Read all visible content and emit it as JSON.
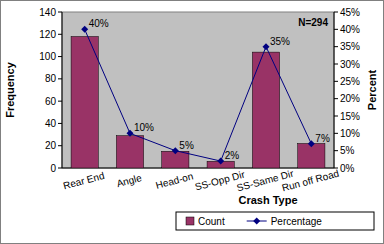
{
  "chart_data": {
    "type": "bar",
    "x_label": "Crash Type",
    "y_label": "Frequency",
    "y2_label": "Percent",
    "annotation": "N=294",
    "categories": [
      "Rear End",
      "Angle",
      "Head-on",
      "SS-Opp Dir",
      "SS-Same Dir",
      "Run off Road"
    ],
    "series": [
      {
        "name": "Count",
        "type": "bar",
        "color": "#993366",
        "values": [
          118,
          29,
          15,
          6,
          104,
          22
        ]
      },
      {
        "name": "Percentage",
        "type": "line",
        "axis": "y2",
        "color": "#000080",
        "marker": "diamond",
        "data_labels": true,
        "values": [
          40,
          10,
          5,
          2,
          35,
          7
        ],
        "value_labels": [
          "40%",
          "10%",
          "5%",
          "2%",
          "35%",
          "7%"
        ]
      }
    ],
    "ylim": [
      0,
      140
    ],
    "yticks": [
      0,
      20,
      40,
      60,
      80,
      100,
      120,
      140
    ],
    "y2lim": [
      0,
      45
    ],
    "y2ticks": [
      {
        "value": 0,
        "label": "0%"
      },
      {
        "value": 5,
        "label": "5%"
      },
      {
        "value": 10,
        "label": "10%"
      },
      {
        "value": 15,
        "label": "15%"
      },
      {
        "value": 20,
        "label": "20%"
      },
      {
        "value": 25,
        "label": "25%"
      },
      {
        "value": 30,
        "label": "30%"
      },
      {
        "value": 35,
        "label": "35%"
      },
      {
        "value": 40,
        "label": "40%"
      },
      {
        "value": 45,
        "label": "45%"
      }
    ],
    "legend": "bottom"
  }
}
